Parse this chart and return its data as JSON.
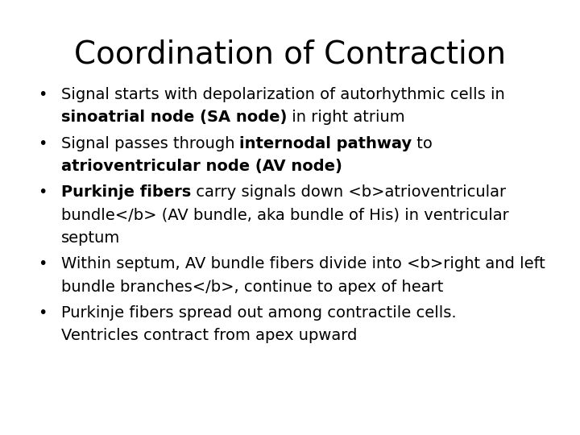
{
  "title": "Coordination of Contraction",
  "background_color": "#ffffff",
  "title_fontsize": 28,
  "body_fontsize": 14,
  "bullet_char": "•",
  "bullets": [
    {
      "text": "Signal starts with depolarization of autorhythmic cells in\n<b>sinoatrial node (SA node)</b> in right atrium"
    },
    {
      "text": "Signal passes through <b>internodal pathway</b> to\n<b>atrioventricular node (AV node)</b>"
    },
    {
      "text": "<b>Purkinje fibers</b> carry signals down <b>atrioventricular\nbundle</b> (AV bundle, aka bundle of His) in ventricular\nseptum"
    },
    {
      "text": "Within septum, AV bundle fibers divide into <b>right and left\nbundle branches</b>, continue to apex of heart"
    },
    {
      "text": "Purkinje fibers spread out among contractile cells.\nVentricles contract from apex upward"
    }
  ]
}
